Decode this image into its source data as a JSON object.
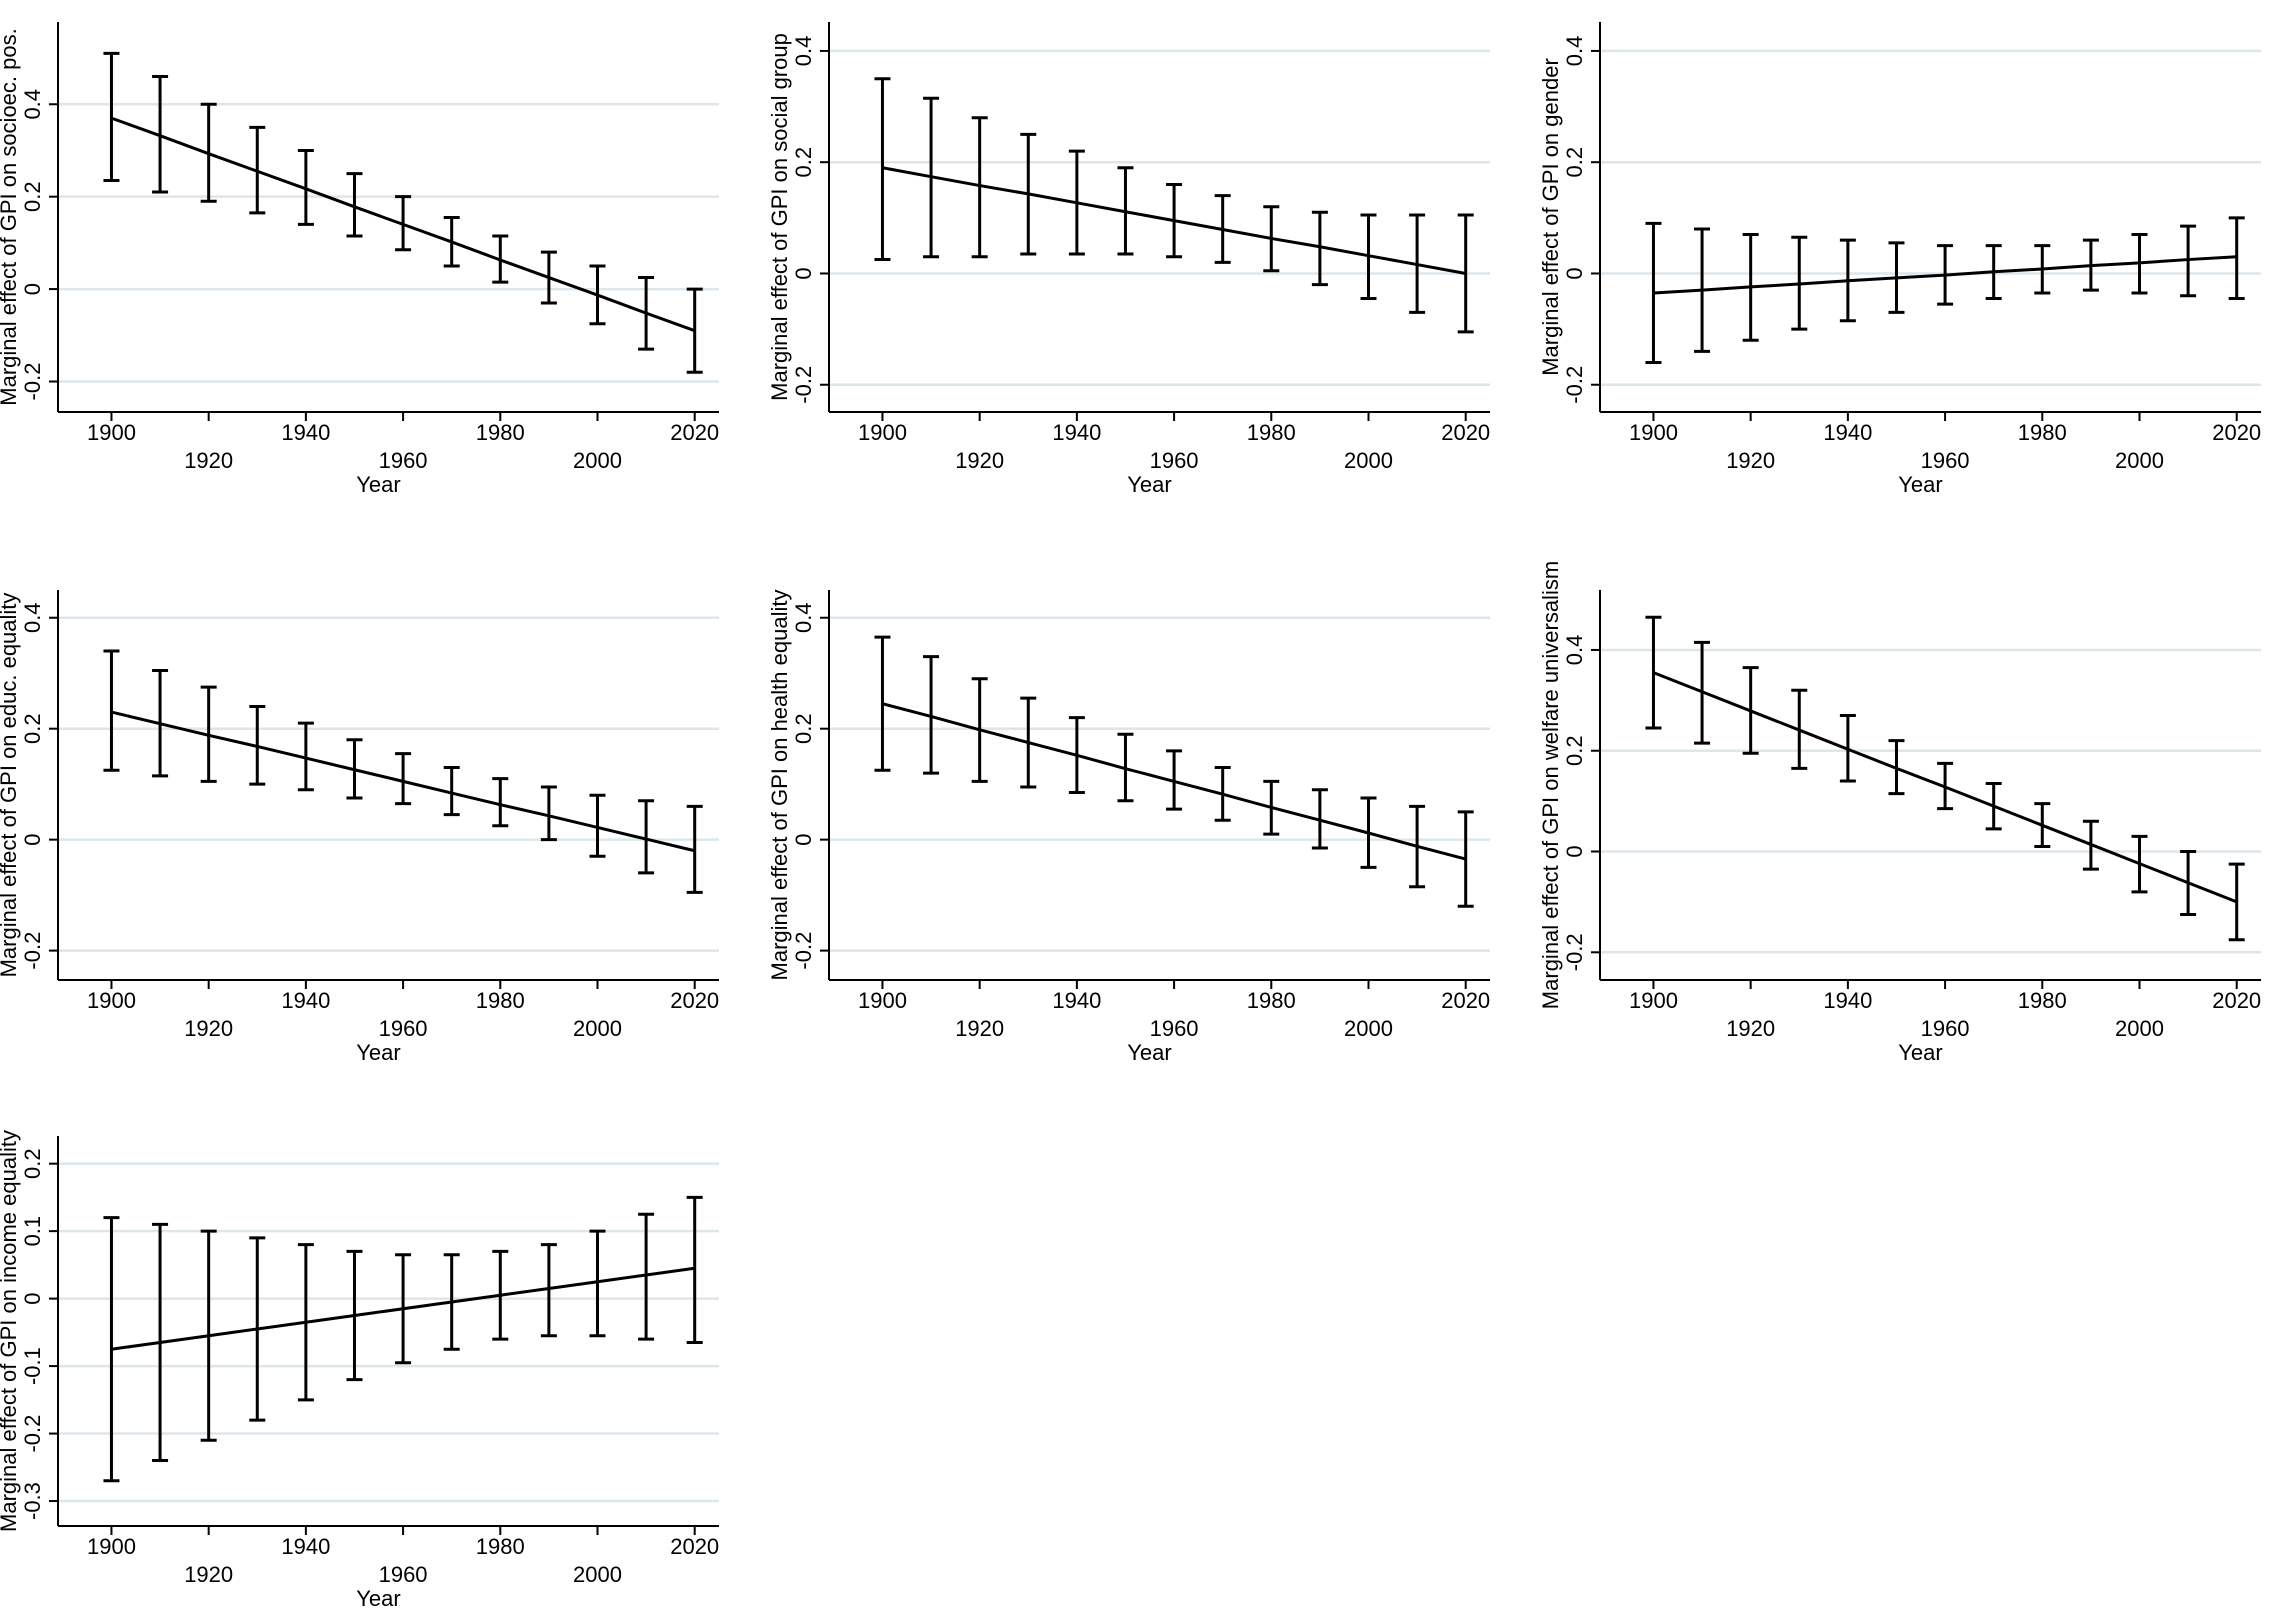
{
  "chart_data": [
    {
      "type": "line",
      "ylabel": "Marginal effect of GPI on socioec. pos.",
      "xlabel": "Year",
      "x": [
        1900,
        1910,
        1920,
        1930,
        1940,
        1950,
        1960,
        1970,
        1980,
        1990,
        2000,
        2010,
        2020
      ],
      "values": [
        0.37,
        0.332,
        0.293,
        0.255,
        0.217,
        0.178,
        0.14,
        0.102,
        0.063,
        0.025,
        -0.013,
        -0.052,
        -0.09
      ],
      "ci_lower": [
        0.235,
        0.21,
        0.19,
        0.165,
        0.14,
        0.115,
        0.085,
        0.05,
        0.015,
        -0.03,
        -0.075,
        -0.13,
        -0.18
      ],
      "ci_upper": [
        0.51,
        0.46,
        0.4,
        0.35,
        0.3,
        0.25,
        0.2,
        0.155,
        0.115,
        0.08,
        0.05,
        0.025,
        0.0
      ],
      "xlim": [
        1889,
        2025
      ],
      "xticks": [
        1900,
        1920,
        1940,
        1960,
        1980,
        2000,
        2020
      ],
      "ylim": [
        -0.266,
        0.578
      ],
      "yticks": [
        -0.2,
        0,
        0.2,
        0.4
      ],
      "grid": true,
      "color": "#000000"
    },
    {
      "type": "line",
      "ylabel": "Marginal effect of GPI on social group",
      "xlabel": "Year",
      "x": [
        1900,
        1910,
        1920,
        1930,
        1940,
        1950,
        1960,
        1970,
        1980,
        1990,
        2000,
        2010,
        2020
      ],
      "values": [
        0.19,
        0.174,
        0.158,
        0.143,
        0.127,
        0.111,
        0.095,
        0.079,
        0.063,
        0.048,
        0.032,
        0.016,
        0.0
      ],
      "ci_lower": [
        0.025,
        0.03,
        0.03,
        0.035,
        0.035,
        0.035,
        0.03,
        0.02,
        0.005,
        -0.02,
        -0.045,
        -0.07,
        -0.105
      ],
      "ci_upper": [
        0.35,
        0.315,
        0.28,
        0.25,
        0.22,
        0.19,
        0.16,
        0.14,
        0.12,
        0.11,
        0.105,
        0.105,
        0.105
      ],
      "xlim": [
        1889,
        2025
      ],
      "xticks": [
        1900,
        1920,
        1940,
        1960,
        1980,
        2000,
        2020
      ],
      "ylim": [
        -0.249,
        0.452
      ],
      "yticks": [
        -0.2,
        0,
        0.2,
        0.4
      ],
      "grid": true,
      "color": "#000000"
    },
    {
      "type": "line",
      "ylabel": "Marginal effect of GPI on gender",
      "xlabel": "Year",
      "x": [
        1900,
        1910,
        1920,
        1930,
        1940,
        1950,
        1960,
        1970,
        1980,
        1990,
        2000,
        2010,
        2020
      ],
      "values": [
        -0.035,
        -0.03,
        -0.024,
        -0.019,
        -0.013,
        -0.008,
        -0.003,
        0.003,
        0.008,
        0.014,
        0.019,
        0.025,
        0.03
      ],
      "ci_lower": [
        -0.16,
        -0.14,
        -0.12,
        -0.1,
        -0.085,
        -0.07,
        -0.055,
        -0.045,
        -0.035,
        -0.03,
        -0.035,
        -0.04,
        -0.045
      ],
      "ci_upper": [
        0.09,
        0.08,
        0.07,
        0.065,
        0.06,
        0.055,
        0.05,
        0.05,
        0.05,
        0.06,
        0.07,
        0.085,
        0.1
      ],
      "xlim": [
        1889,
        2025
      ],
      "xticks": [
        1900,
        1920,
        1940,
        1960,
        1980,
        2000,
        2020
      ],
      "ylim": [
        -0.249,
        0.452
      ],
      "yticks": [
        -0.2,
        0,
        0.2,
        0.4
      ],
      "grid": true,
      "color": "#000000"
    },
    {
      "type": "line",
      "ylabel": "Marginal effect of GPI on educ. equality",
      "xlabel": "Year",
      "x": [
        1900,
        1910,
        1920,
        1930,
        1940,
        1950,
        1960,
        1970,
        1980,
        1990,
        2000,
        2010,
        2020
      ],
      "values": [
        0.23,
        0.209,
        0.188,
        0.168,
        0.147,
        0.126,
        0.105,
        0.084,
        0.063,
        0.043,
        0.022,
        0.001,
        -0.02
      ],
      "ci_lower": [
        0.125,
        0.115,
        0.105,
        0.1,
        0.09,
        0.075,
        0.065,
        0.045,
        0.025,
        0.0,
        -0.03,
        -0.06,
        -0.095
      ],
      "ci_upper": [
        0.34,
        0.305,
        0.275,
        0.24,
        0.21,
        0.18,
        0.155,
        0.13,
        0.11,
        0.095,
        0.08,
        0.07,
        0.06
      ],
      "xlim": [
        1889,
        2025
      ],
      "xticks": [
        1900,
        1920,
        1940,
        1960,
        1980,
        2000,
        2020
      ],
      "ylim": [
        -0.253,
        0.45
      ],
      "yticks": [
        -0.2,
        0,
        0.2,
        0.4
      ],
      "grid": true,
      "color": "#000000"
    },
    {
      "type": "line",
      "ylabel": "Marginal effect of GPI on health equality",
      "xlabel": "Year",
      "x": [
        1900,
        1910,
        1920,
        1930,
        1940,
        1950,
        1960,
        1970,
        1980,
        1990,
        2000,
        2010,
        2020
      ],
      "values": [
        0.245,
        0.222,
        0.198,
        0.175,
        0.152,
        0.128,
        0.105,
        0.082,
        0.058,
        0.035,
        0.012,
        -0.012,
        -0.035
      ],
      "ci_lower": [
        0.125,
        0.12,
        0.105,
        0.095,
        0.085,
        0.07,
        0.055,
        0.035,
        0.01,
        -0.015,
        -0.05,
        -0.085,
        -0.12
      ],
      "ci_upper": [
        0.365,
        0.33,
        0.29,
        0.255,
        0.22,
        0.19,
        0.16,
        0.13,
        0.105,
        0.09,
        0.075,
        0.06,
        0.05
      ],
      "xlim": [
        1889,
        2025
      ],
      "xticks": [
        1900,
        1920,
        1940,
        1960,
        1980,
        2000,
        2020
      ],
      "ylim": [
        -0.253,
        0.45
      ],
      "yticks": [
        -0.2,
        0,
        0.2,
        0.4
      ],
      "grid": true,
      "color": "#000000"
    },
    {
      "type": "line",
      "ylabel": "Marginal effect of GPI on welfare universalism",
      "xlabel": "Year",
      "x": [
        1900,
        1910,
        1920,
        1930,
        1940,
        1950,
        1960,
        1970,
        1980,
        1990,
        2000,
        2010,
        2020
      ],
      "values": [
        0.355,
        0.317,
        0.279,
        0.241,
        0.203,
        0.165,
        0.128,
        0.09,
        0.052,
        0.014,
        -0.024,
        -0.062,
        -0.1
      ],
      "ci_lower": [
        0.245,
        0.215,
        0.195,
        0.165,
        0.14,
        0.115,
        0.085,
        0.045,
        0.01,
        -0.035,
        -0.08,
        -0.125,
        -0.175
      ],
      "ci_upper": [
        0.465,
        0.415,
        0.365,
        0.32,
        0.27,
        0.22,
        0.175,
        0.135,
        0.095,
        0.06,
        0.03,
        0.0,
        -0.025
      ],
      "xlim": [
        1889,
        2025
      ],
      "xticks": [
        1900,
        1920,
        1940,
        1960,
        1980,
        2000,
        2020
      ],
      "ylim": [
        -0.255,
        0.519
      ],
      "yticks": [
        -0.2,
        0,
        0.2,
        0.4
      ],
      "grid": true,
      "color": "#000000"
    },
    {
      "type": "line",
      "ylabel": "Marginal effect of GPI on income equality",
      "xlabel": "Year",
      "x": [
        1900,
        1910,
        1920,
        1930,
        1940,
        1950,
        1960,
        1970,
        1980,
        1990,
        2000,
        2010,
        2020
      ],
      "values": [
        -0.075,
        -0.065,
        -0.055,
        -0.045,
        -0.035,
        -0.025,
        -0.015,
        -0.005,
        0.005,
        0.015,
        0.025,
        0.035,
        0.045
      ],
      "ci_lower": [
        -0.27,
        -0.24,
        -0.21,
        -0.18,
        -0.15,
        -0.12,
        -0.095,
        -0.075,
        -0.06,
        -0.055,
        -0.055,
        -0.06,
        -0.065
      ],
      "ci_upper": [
        0.12,
        0.11,
        0.1,
        0.09,
        0.08,
        0.07,
        0.065,
        0.065,
        0.07,
        0.08,
        0.1,
        0.125,
        0.15
      ],
      "xlim": [
        1889,
        2025
      ],
      "xticks": [
        1900,
        1920,
        1940,
        1960,
        1980,
        2000,
        2020
      ],
      "ylim": [
        -0.337,
        0.241
      ],
      "yticks": [
        -0.3,
        -0.2,
        -0.1,
        0,
        0.1,
        0.2
      ],
      "grid": true,
      "color": "#000000"
    }
  ]
}
